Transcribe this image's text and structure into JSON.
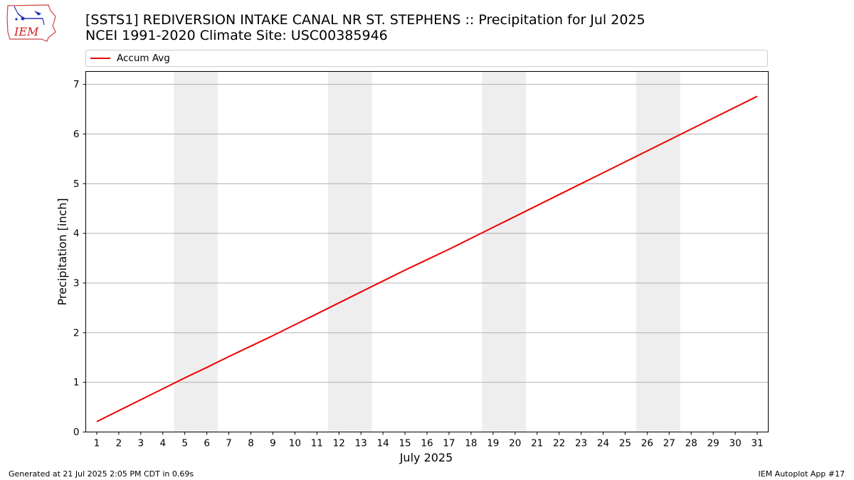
{
  "header": {
    "logo_text": "IEM",
    "title_line1": "[SSTS1] REDIVERSION INTAKE CANAL NR ST. STEPHENS :: Precipitation for Jul 2025",
    "title_line2": "NCEI 1991-2020 Climate Site: USC00385946"
  },
  "legend": {
    "label": "Accum Avg",
    "color": "#ee0000"
  },
  "footer": {
    "left": "Generated at 21 Jul 2025 2:05 PM CDT in 0.69s",
    "right": "IEM Autoplot App #17"
  },
  "chart_data": {
    "type": "line",
    "title": "[SSTS1] REDIVERSION INTAKE CANAL NR ST. STEPHENS :: Precipitation for Jul 2025",
    "subtitle": "NCEI 1991-2020 Climate Site: USC00385946",
    "xlabel": "July 2025",
    "ylabel": "Precipitation [inch]",
    "ylim": [
      0,
      7.26
    ],
    "yticks": [
      0,
      1,
      2,
      3,
      4,
      5,
      6,
      7
    ],
    "x": [
      1,
      2,
      3,
      4,
      5,
      6,
      7,
      8,
      9,
      10,
      11,
      12,
      13,
      14,
      15,
      16,
      17,
      18,
      19,
      20,
      21,
      22,
      23,
      24,
      25,
      26,
      27,
      28,
      29,
      30,
      31
    ],
    "xtick_labels": [
      "1",
      "2",
      "3",
      "4",
      "5",
      "6",
      "7",
      "8",
      "9",
      "10",
      "11",
      "12",
      "13",
      "14",
      "15",
      "16",
      "17",
      "18",
      "19",
      "20",
      "21",
      "22",
      "23",
      "24",
      "25",
      "26",
      "27",
      "28",
      "29",
      "30",
      "31"
    ],
    "weekend_bands": [
      [
        5,
        6
      ],
      [
        12,
        13
      ],
      [
        19,
        20
      ],
      [
        26,
        27
      ]
    ],
    "grid": "horizontal",
    "legend_position": "top",
    "series": [
      {
        "name": "Accum Avg",
        "color": "#ee0000",
        "values": [
          0.21,
          0.43,
          0.65,
          0.87,
          1.09,
          1.3,
          1.52,
          1.73,
          1.94,
          2.16,
          2.38,
          2.6,
          2.82,
          3.04,
          3.26,
          3.47,
          3.68,
          3.9,
          4.12,
          4.34,
          4.56,
          4.78,
          5.0,
          5.22,
          5.44,
          5.66,
          5.88,
          6.1,
          6.32,
          6.54,
          6.76
        ]
      }
    ]
  }
}
